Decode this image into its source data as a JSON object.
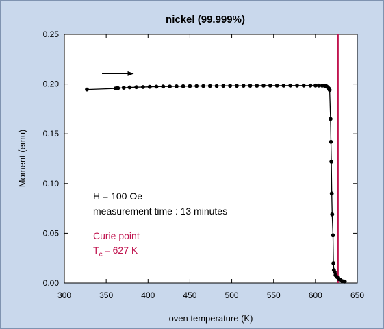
{
  "colors": {
    "background": "#c9d8ec",
    "plot_area": "#ffffff",
    "curie_line": "#c0144f",
    "curve": "#000000"
  },
  "chart_data": {
    "type": "scatter",
    "title": "nickel (99.999%)",
    "xlabel": "oven temperature (K)",
    "ylabel": "Moment (emu)",
    "xlim": [
      300,
      650
    ],
    "ylim": [
      0,
      0.25
    ],
    "xticks": [
      "300",
      "350",
      "400",
      "450",
      "500",
      "550",
      "600",
      "650"
    ],
    "yticks": [
      "0.00",
      "0.05",
      "0.10",
      "0.15",
      "0.20",
      "0.25"
    ],
    "grid": false,
    "series": [
      {
        "x": [
          327,
          361,
          363,
          364,
          371,
          378,
          386,
          394,
          402,
          410,
          418,
          426,
          434,
          442,
          450,
          458,
          466,
          474,
          482,
          490,
          498,
          506,
          514,
          522,
          530,
          538,
          546,
          554,
          562,
          570,
          578,
          586,
          594,
          600,
          604,
          608,
          611,
          613,
          614,
          615,
          616,
          617,
          618,
          618.5,
          619,
          619.5,
          620,
          621,
          621.5,
          622,
          623,
          624,
          626,
          628,
          630,
          632,
          635
        ],
        "y": [
          0.1945,
          0.1955,
          0.1957,
          0.1958,
          0.1962,
          0.1966,
          0.1968,
          0.197,
          0.1972,
          0.1974,
          0.1975,
          0.1976,
          0.1977,
          0.1978,
          0.1979,
          0.198,
          0.198,
          0.1981,
          0.1981,
          0.1982,
          0.1982,
          0.1982,
          0.1983,
          0.1983,
          0.1983,
          0.1984,
          0.1984,
          0.1984,
          0.1984,
          0.1985,
          0.1985,
          0.1985,
          0.1985,
          0.1985,
          0.1985,
          0.1984,
          0.1982,
          0.1978,
          0.1972,
          0.1965,
          0.1955,
          0.194,
          0.165,
          0.142,
          0.122,
          0.09,
          0.069,
          0.048,
          0.02,
          0.013,
          0.011,
          0.008,
          0.006,
          0.004,
          0.003,
          0.002,
          0.0015
        ]
      }
    ],
    "arrow_x": [
      345,
      383
    ],
    "arrow_y": 0.2105,
    "curie_temperature": 627,
    "annotations": {
      "field": "H = 100 Oe",
      "measurement_time": "measurement time : 13 minutes",
      "curie_label": "Curie point",
      "tc_symbol": "T",
      "tc_subscript": "c",
      "tc_value": "= 627 K"
    }
  }
}
